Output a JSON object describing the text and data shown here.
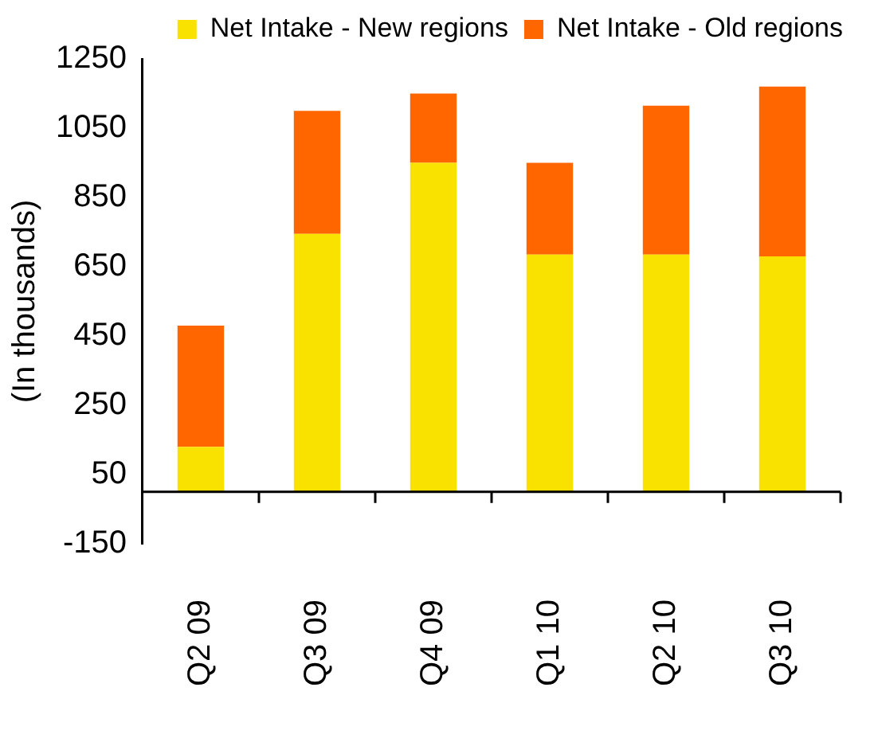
{
  "chart_data": {
    "type": "bar",
    "stacked": true,
    "ylabel": "(In thousands)",
    "categories": [
      "Q2 09",
      "Q3 09",
      "Q4 09",
      "Q1 10",
      "Q2 10",
      "Q3 10"
    ],
    "series": [
      {
        "name": "Net Intake - New regions",
        "color": "#f9e200",
        "values": [
          130,
          745,
          950,
          685,
          685,
          680
        ]
      },
      {
        "name": "Net Intake - Old regions",
        "color": "#ff6600",
        "values": [
          350,
          355,
          200,
          265,
          430,
          490
        ]
      }
    ],
    "ylim": [
      -150,
      1250
    ],
    "yticks": [
      -150,
      50,
      250,
      450,
      650,
      850,
      1050,
      1250
    ],
    "grid": false,
    "legend": "top right"
  }
}
